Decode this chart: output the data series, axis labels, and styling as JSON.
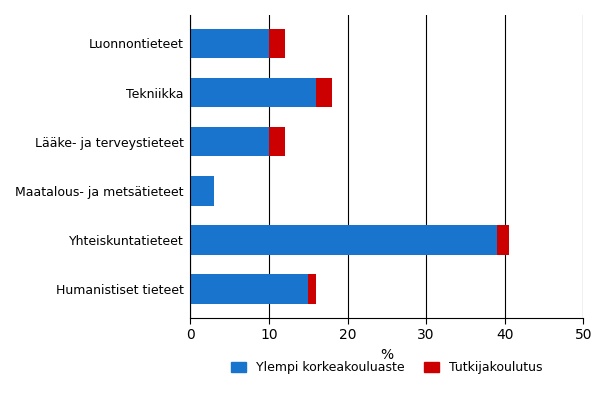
{
  "categories": [
    "Humanistiset tieteet",
    "Yhteiskuntatieteet",
    "Maatalous- ja metsätieteet",
    "Lääke- ja terveystieteet",
    "Tekniikka",
    "Luonnontieteet"
  ],
  "ylempi_values": [
    15,
    39,
    3,
    10,
    16,
    10
  ],
  "tutkija_values": [
    1,
    1.5,
    0,
    2,
    2,
    2
  ],
  "blue_color": "#1874CD",
  "red_color": "#CC0000",
  "xlabel": "%",
  "xlim": [
    0,
    50
  ],
  "xticks": [
    0,
    10,
    20,
    30,
    40,
    50
  ],
  "legend_ylempi": "Ylempi korkeakouluaste",
  "legend_tutkija": "Tutkijakoulutus",
  "bar_height": 0.6,
  "background_color": "#ffffff",
  "grid_color": "#000000"
}
